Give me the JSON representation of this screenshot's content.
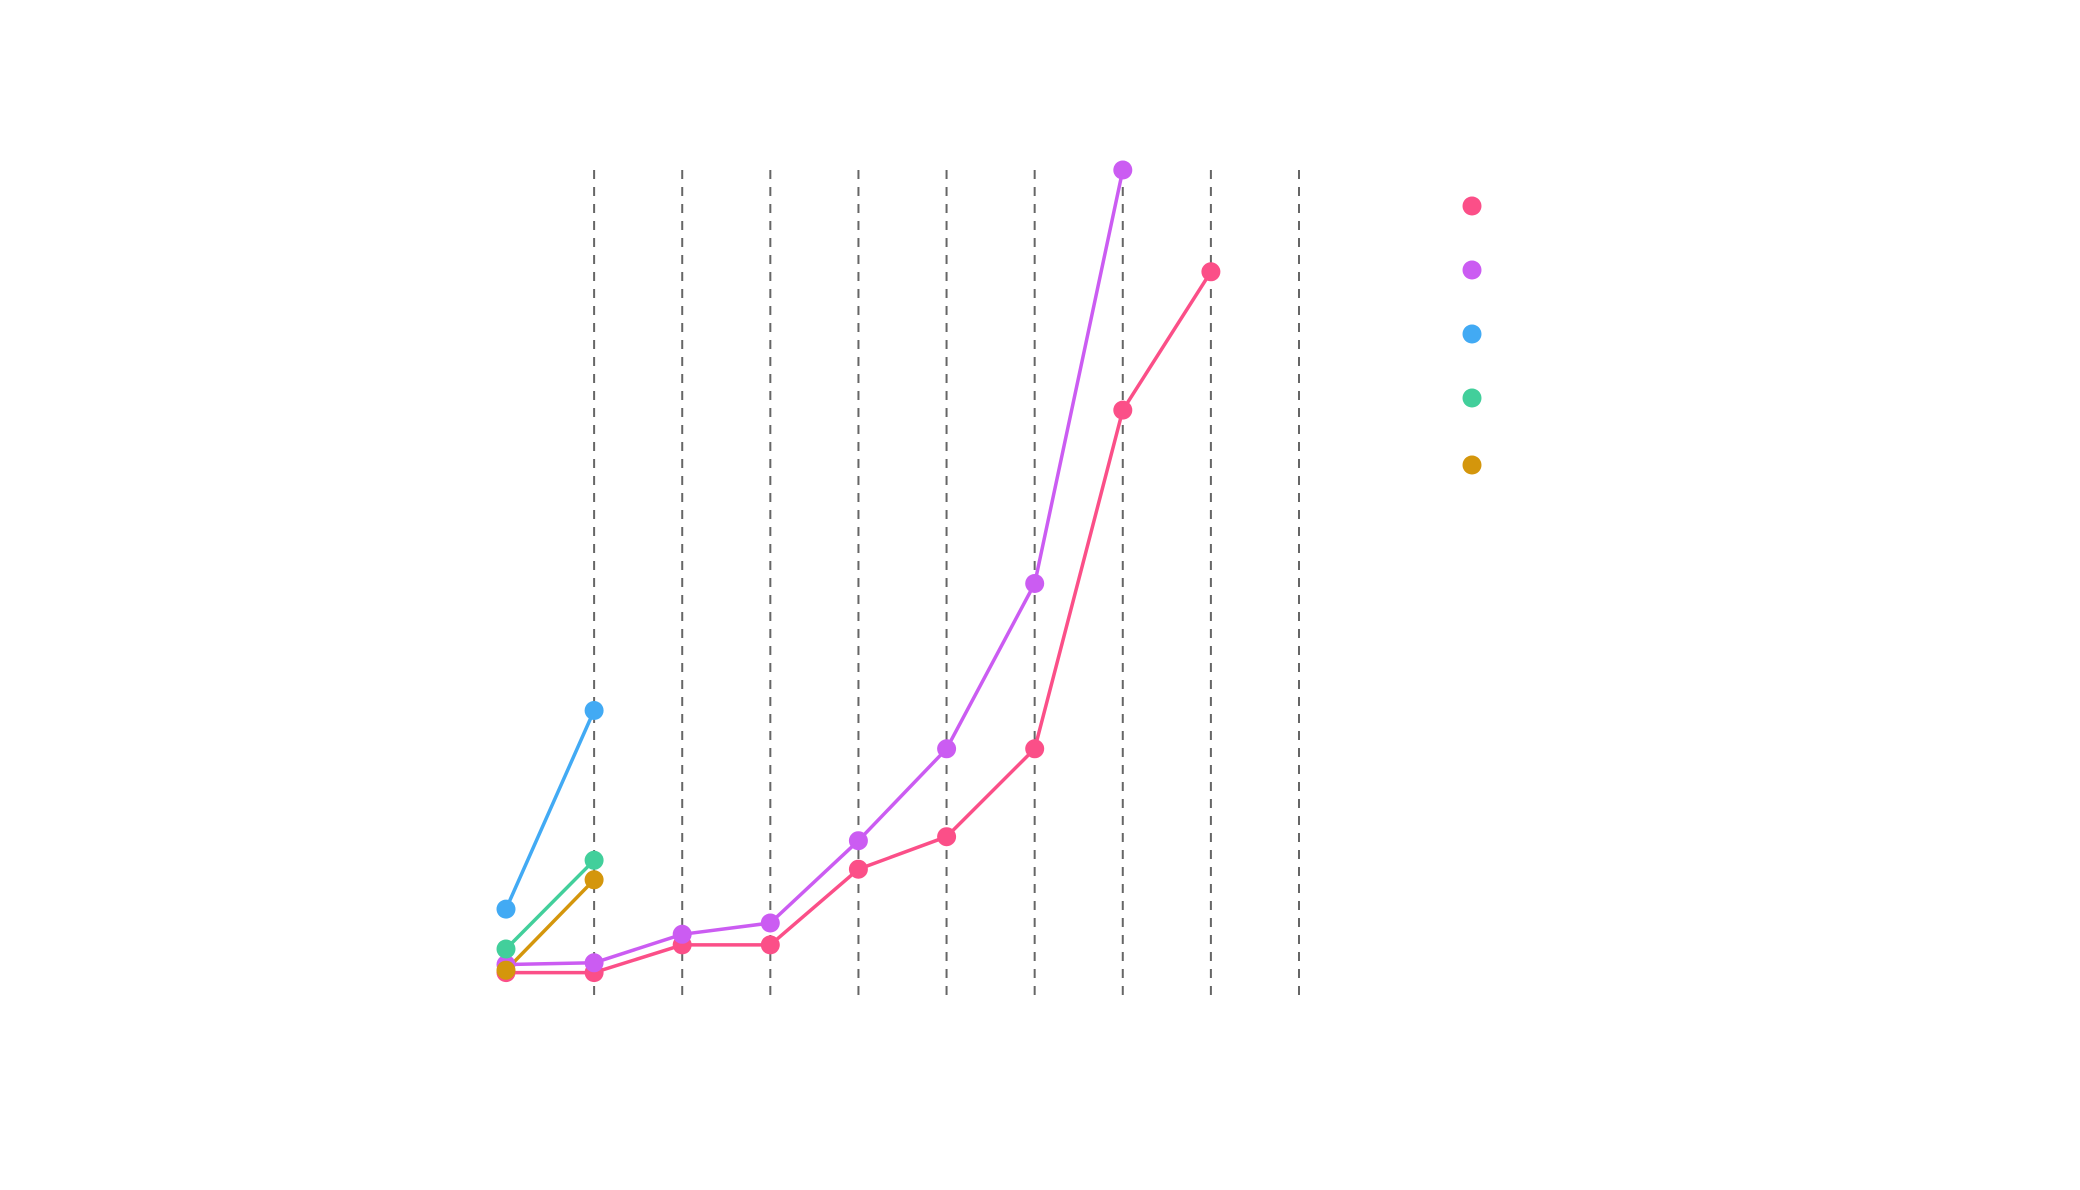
{
  "chart_data": {
    "type": "line",
    "title": "",
    "xlabel": "",
    "ylabel": "",
    "grid": {
      "vertical_dashed": true,
      "x_positions": [
        1,
        2,
        3,
        4,
        5,
        6,
        7,
        8,
        9
      ]
    },
    "xlim": [
      0,
      9
    ],
    "ylim": [
      0,
      100
    ],
    "legend": {
      "placement": "right"
    },
    "series": [
      {
        "color": "#fb4f88",
        "x": [
          0,
          1,
          2,
          3,
          4,
          5,
          6,
          7,
          8
        ],
        "values": [
          1.4,
          1.4,
          4.8,
          4.8,
          14.1,
          18.1,
          28.9,
          70.5,
          87.5
        ]
      },
      {
        "color": "#cb5cf2",
        "x": [
          0,
          1,
          2,
          3,
          4,
          5,
          6,
          7
        ],
        "values": [
          2.4,
          2.6,
          6.1,
          7.5,
          17.6,
          28.9,
          49.2,
          100
        ]
      },
      {
        "color": "#42aaf4",
        "x": [
          0,
          1
        ],
        "values": [
          9.2,
          33.6
        ]
      },
      {
        "color": "#42cf9b",
        "x": [
          0,
          1
        ],
        "values": [
          4.3,
          15.2
        ]
      },
      {
        "color": "#d4960c",
        "x": [
          0,
          1
        ],
        "values": [
          1.7,
          12.8
        ]
      }
    ]
  }
}
